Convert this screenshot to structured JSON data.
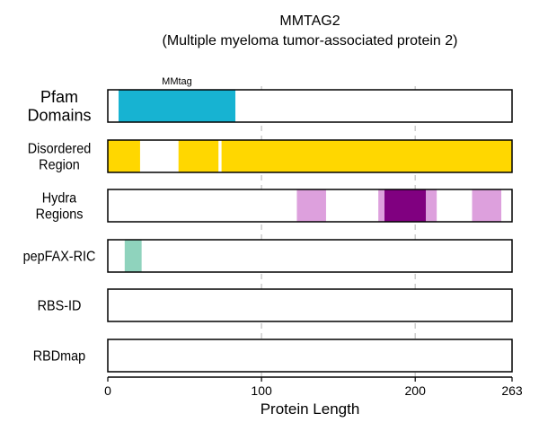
{
  "chart_data": {
    "type": "feature-track",
    "title": "MMTAG2",
    "subtitle": "(Multiple myeloma tumor-associated protein 2)",
    "xlabel": "Protein Length",
    "xlim": [
      0,
      263
    ],
    "xticks": [
      0,
      100,
      200,
      263
    ],
    "gridlines": [
      100,
      200
    ],
    "tracks": [
      {
        "label_lines": [
          "Pfam",
          "Domains"
        ],
        "features": [
          {
            "start": 7,
            "end": 83,
            "color": "#17b3d2",
            "label": "MMtag"
          }
        ]
      },
      {
        "label_lines": [
          "Disordered",
          "Region"
        ],
        "features": [
          {
            "start": 0,
            "end": 21,
            "color": "#ffd700"
          },
          {
            "start": 46,
            "end": 72,
            "color": "#ffd700"
          },
          {
            "start": 74,
            "end": 263,
            "color": "#ffd700"
          }
        ]
      },
      {
        "label_lines": [
          "Hydra",
          "Regions"
        ],
        "features": [
          {
            "start": 123,
            "end": 142,
            "color": "#dda0dd"
          },
          {
            "start": 176,
            "end": 180,
            "color": "#dda0dd"
          },
          {
            "start": 180,
            "end": 207,
            "color": "#800080"
          },
          {
            "start": 207,
            "end": 214,
            "color": "#dda0dd"
          },
          {
            "start": 237,
            "end": 256,
            "color": "#dda0dd"
          }
        ]
      },
      {
        "label_lines": [
          "pepFAX-RIC"
        ],
        "features": [
          {
            "start": 11,
            "end": 22,
            "color": "#8fd3bd"
          }
        ]
      },
      {
        "label_lines": [
          "RBS-ID"
        ],
        "features": []
      },
      {
        "label_lines": [
          "RBDmap"
        ],
        "features": []
      }
    ]
  }
}
